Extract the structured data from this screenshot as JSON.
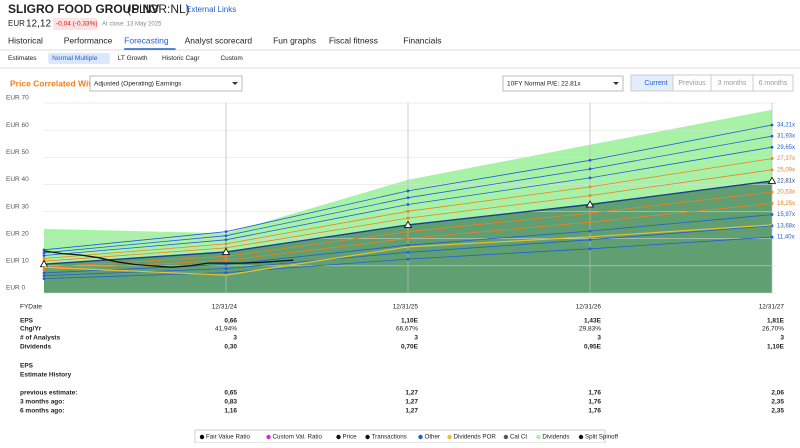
{
  "header": {
    "title": "SLIGRO FOOD GROUP NV",
    "ticker": "(SLIGR:NL)",
    "external": "External Links",
    "currency": "EUR",
    "price": "12,12",
    "change": "-0,04 (-0,33%)",
    "close": "At close: 13 May 2025"
  },
  "tabs": [
    "Historical",
    "Performance",
    "Forecasting",
    "Analyst scorecard",
    "Fun graphs",
    "Fiscal fitness",
    "Financials"
  ],
  "subtabs": [
    "Estimates",
    "Normal Multiple",
    "LT Growth",
    "Historic Cagr",
    "Custom"
  ],
  "controls": {
    "label": "Price Correlated With",
    "select": "Adjusted (Operating) Earnings",
    "pe_select": "10FY Normal P/E: 22.81x",
    "periods": [
      "Current",
      "Previous",
      "3 months",
      "6 months"
    ]
  },
  "chart_data": {
    "type": "line",
    "xlim": [
      2024,
      2028
    ],
    "xticks": [
      {
        "value": 2025,
        "label": "12/31/24"
      },
      {
        "value": 2026,
        "label": "12/31/25"
      },
      {
        "value": 2027,
        "label": "12/31/26"
      },
      {
        "value": 2028,
        "label": "12/31/27"
      }
    ],
    "ylim": [
      0,
      70
    ],
    "yticks": [
      {
        "value": 0,
        "label": "EUR 0"
      },
      {
        "value": 10,
        "label": "EUR 10"
      },
      {
        "value": 20,
        "label": "EUR 20"
      },
      {
        "value": 30,
        "label": "EUR 30"
      },
      {
        "value": 40,
        "label": "EUR 40"
      },
      {
        "value": 50,
        "label": "EUR 50"
      },
      {
        "value": 60,
        "label": "EUR 60"
      },
      {
        "value": 70,
        "label": "EUR 70"
      }
    ],
    "x": [
      2024,
      2025,
      2026,
      2027,
      2028
    ],
    "dividends": {
      "color": "#a8f2a8",
      "values": [
        23.6,
        22,
        41.7,
        54.6,
        67.5
      ]
    },
    "fair_area_color": "#5f9f72",
    "series": [
      {
        "name": "34,21x",
        "color": "#1f5fd6",
        "values": [
          15.9,
          22.6,
          37.6,
          48.9,
          61.9
        ]
      },
      {
        "name": "31,93x",
        "color": "#1f5fd6",
        "values": [
          14.8,
          21.1,
          35.1,
          45.7,
          57.8
        ]
      },
      {
        "name": "29,65x",
        "color": "#1f5fd6",
        "values": [
          13.8,
          19.6,
          32.6,
          42.4,
          53.7
        ]
      },
      {
        "name": "27,37x",
        "color": "#f07f1e",
        "values": [
          12.7,
          18.1,
          30.1,
          39.1,
          49.5
        ]
      },
      {
        "name": "25,09x",
        "color": "#f07f1e",
        "values": [
          11.7,
          16.6,
          27.6,
          35.9,
          45.4
        ]
      },
      {
        "name": "22,81x",
        "color": "#1a3f8f",
        "values": [
          10.6,
          15.1,
          25.1,
          32.6,
          41.3
        ]
      },
      {
        "name": "20,53x",
        "color": "#f07f1e",
        "values": [
          9.5,
          13.5,
          22.6,
          29.4,
          37.2
        ]
      },
      {
        "name": "18,25x",
        "color": "#f07f1e",
        "values": [
          8.5,
          12.0,
          20.1,
          26.1,
          33.0
        ]
      },
      {
        "name": "15,97x",
        "color": "#1f5fd6",
        "values": [
          7.4,
          10.5,
          17.6,
          22.8,
          28.9
        ]
      },
      {
        "name": "13,68x",
        "color": "#1f5fd6",
        "values": [
          6.4,
          9.0,
          15.0,
          19.6,
          24.8
        ]
      },
      {
        "name": "11,40x",
        "color": "#1f5fd6",
        "values": [
          5.3,
          7.5,
          12.5,
          16.3,
          20.6
        ]
      }
    ],
    "fair_index": 5,
    "por": {
      "color": "#e8c22a",
      "values": [
        9.5,
        6.6,
        17,
        20.7,
        25.1
      ]
    },
    "price": {
      "color": "#111111",
      "x": [
        2024.0,
        2024.1,
        2024.2,
        2024.3,
        2024.4,
        2024.5,
        2024.6,
        2024.7,
        2024.8,
        2024.9,
        2025.0,
        2025.1,
        2025.2,
        2025.3,
        2025.37
      ],
      "values": [
        15.5,
        14.5,
        14,
        13,
        11.5,
        10.5,
        10,
        9.5,
        10,
        11,
        11,
        11,
        11.3,
        11.8,
        12.1
      ]
    }
  },
  "table": {
    "header": [
      "FYDate",
      "12/31/24",
      "12/31/25",
      "12/31/26",
      "12/31/27"
    ],
    "rows": [
      [
        "EPS",
        "0,66",
        "1,10E",
        "1,43E",
        "1,81E"
      ],
      [
        "Chg/Yr",
        "41,94%",
        "66,67%",
        "29,83%",
        "26,70%"
      ],
      [
        "# of Analysts",
        "3",
        "3",
        "3",
        "3"
      ],
      [
        "Dividends",
        "0,30",
        "0,70E",
        "0,95E",
        "1,10E"
      ]
    ],
    "section": [
      "EPS",
      "Estimate History"
    ],
    "rows2": [
      [
        "previous estimate:",
        "0,65",
        "1,27",
        "1,76",
        "2,06"
      ],
      [
        "3 months ago:",
        "0,83",
        "1,27",
        "1,76",
        "2,35"
      ],
      [
        "6 months ago:",
        "1,16",
        "1,27",
        "1,76",
        "2,35"
      ]
    ]
  },
  "legend": [
    {
      "label": "Fair Value Ratio",
      "color": "#000000"
    },
    {
      "label": "Custom Val. Ratio",
      "color": "#d62ad6"
    },
    {
      "label": "Price",
      "color": "#111111"
    },
    {
      "label": "Transactions",
      "color": "#111111"
    },
    {
      "label": "Other",
      "color": "#1f5fd6"
    },
    {
      "label": "Dividends POR",
      "color": "#e8c22a"
    },
    {
      "label": "Cal Ct",
      "color": "#555555"
    },
    {
      "label": "Dividends",
      "color": "#a8f2a8"
    },
    {
      "label": "Split Spinoff",
      "color": "#111111"
    }
  ]
}
